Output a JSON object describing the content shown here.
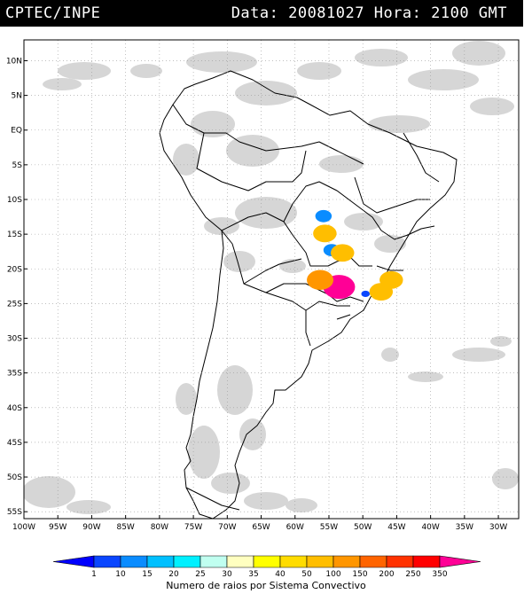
{
  "header": {
    "producer": "CPTEC/INPE",
    "datetime": "Data: 20081027 Hora: 2100 GMT"
  },
  "map": {
    "lon_range": [
      -100,
      -27
    ],
    "lat_range": [
      -56,
      13
    ],
    "lat_ticks": [
      {
        "lat": 10,
        "label": "10N"
      },
      {
        "lat": 5,
        "label": "5N"
      },
      {
        "lat": 0,
        "label": "EQ"
      },
      {
        "lat": -5,
        "label": "5S"
      },
      {
        "lat": -10,
        "label": "10S"
      },
      {
        "lat": -15,
        "label": "15S"
      },
      {
        "lat": -20,
        "label": "20S"
      },
      {
        "lat": -25,
        "label": "25S"
      },
      {
        "lat": -30,
        "label": "30S"
      },
      {
        "lat": -35,
        "label": "35S"
      },
      {
        "lat": -40,
        "label": "40S"
      },
      {
        "lat": -45,
        "label": "45S"
      },
      {
        "lat": -50,
        "label": "50S"
      },
      {
        "lat": -55,
        "label": "55S"
      }
    ],
    "lon_ticks": [
      {
        "lon": -100,
        "label": "100W"
      },
      {
        "lon": -95,
        "label": "95W"
      },
      {
        "lon": -90,
        "label": "90W"
      },
      {
        "lon": -85,
        "label": "85W"
      },
      {
        "lon": -80,
        "label": "80W"
      },
      {
        "lon": -75,
        "label": "75W"
      },
      {
        "lon": -70,
        "label": "70W"
      },
      {
        "lon": -65,
        "label": "65W"
      },
      {
        "lon": -60,
        "label": "60W"
      },
      {
        "lon": -55,
        "label": "55W"
      },
      {
        "lon": -50,
        "label": "50W"
      },
      {
        "lon": -45,
        "label": "45W"
      },
      {
        "lon": -40,
        "label": "40W"
      },
      {
        "lon": -35,
        "label": "35W"
      },
      {
        "lon": -30,
        "label": "30W"
      }
    ],
    "lightning_systems": [
      {
        "lon": -53.5,
        "lat": -22.6,
        "category": "350"
      },
      {
        "lon": -56.3,
        "lat": -21.6,
        "category": "100"
      },
      {
        "lon": -55.6,
        "lat": -14.9,
        "category": "50"
      },
      {
        "lon": -55.8,
        "lat": -12.4,
        "category": "10"
      },
      {
        "lon": -54.6,
        "lat": -17.3,
        "category": "10"
      },
      {
        "lon": -53.0,
        "lat": -17.7,
        "category": "50"
      },
      {
        "lon": -49.6,
        "lat": -23.6,
        "category": "1"
      },
      {
        "lon": -47.3,
        "lat": -23.3,
        "category": "50"
      },
      {
        "lon": -45.8,
        "lat": -21.6,
        "category": "50"
      }
    ]
  },
  "colorbar": {
    "labels": [
      "1",
      "10",
      "15",
      "20",
      "25",
      "30",
      "35",
      "40",
      "50",
      "100",
      "150",
      "200",
      "250",
      "350"
    ],
    "colors": [
      "#0000ff",
      "#0a46ff",
      "#0a8cff",
      "#00c0ff",
      "#00f0ff",
      "#c0fff0",
      "#ffffc0",
      "#ffff00",
      "#ffdc00",
      "#ffbe00",
      "#ff9600",
      "#ff6400",
      "#ff3200",
      "#ff0000",
      "#ff0096"
    ],
    "title": "Numero de raios por Sistema Convectivo"
  }
}
